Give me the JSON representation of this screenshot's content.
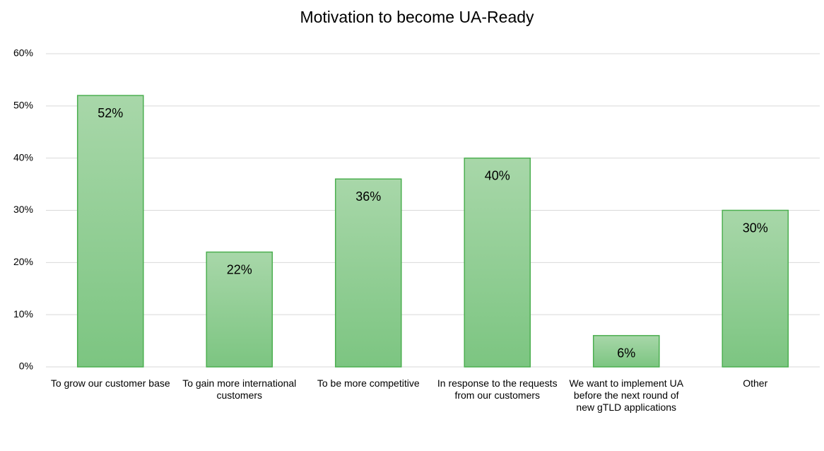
{
  "chart_data": {
    "type": "bar",
    "title": "Motivation to become UA-Ready",
    "categories": [
      "To grow our customer base",
      "To gain more international customers",
      "To be more competitive",
      "In response to the requests from our customers",
      "We want to implement UA before the next round of new gTLD applications",
      "Other"
    ],
    "values": [
      52,
      22,
      36,
      40,
      6,
      30
    ],
    "value_labels": [
      "52%",
      "22%",
      "36%",
      "40%",
      "6%",
      "30%"
    ],
    "color": "#8fcd92",
    "ylim": [
      0,
      60
    ],
    "yticks": [
      {
        "value": 0,
        "label": "0%"
      },
      {
        "value": 10,
        "label": "10%"
      },
      {
        "value": 20,
        "label": "20%"
      },
      {
        "value": 30,
        "label": "30%"
      },
      {
        "value": 40,
        "label": "40%"
      },
      {
        "value": 50,
        "label": "50%"
      },
      {
        "value": 60,
        "label": "60%"
      }
    ],
    "grid": true
  }
}
